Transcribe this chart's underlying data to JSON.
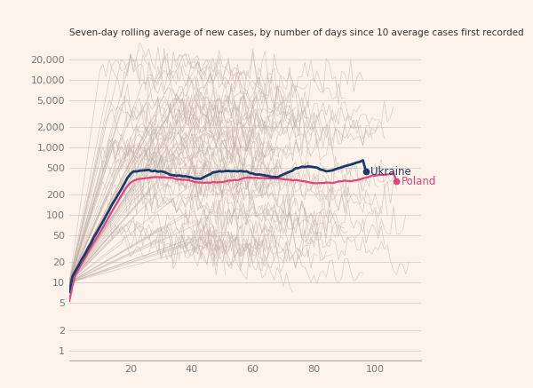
{
  "title": "Seven-day rolling average of new cases, by number of days since 10 average cases first recorded",
  "background_color": "#fdf3ea",
  "ukraine_color": "#1a3a6b",
  "poland_color": "#e5417a",
  "other_color": "#c0b0a8",
  "ukraine_label": "Ukraine",
  "poland_label": "Poland",
  "xlabel_ticks": [
    20,
    40,
    60,
    80,
    100
  ],
  "yticks": [
    1,
    2,
    5,
    10,
    20,
    50,
    100,
    200,
    500,
    1000,
    2000,
    5000,
    10000,
    20000
  ],
  "xlim": [
    0,
    115
  ],
  "ylim_log": [
    0.7,
    35000
  ]
}
